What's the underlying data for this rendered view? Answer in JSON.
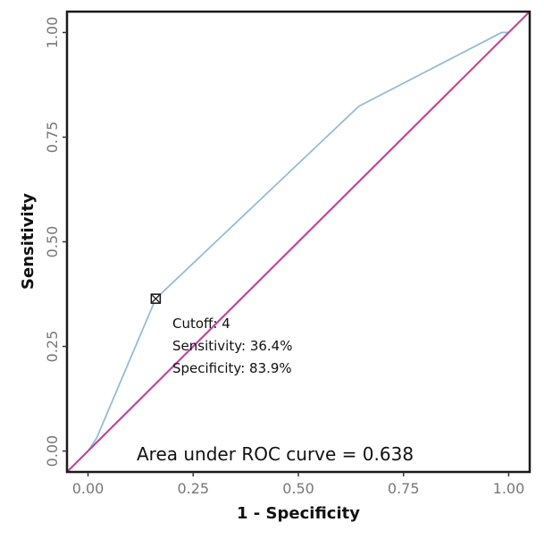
{
  "chart_data": {
    "type": "line",
    "title": "",
    "xlabel": "1 - Specificity",
    "ylabel": "Sensitivity",
    "xlim": [
      -0.05,
      1.05
    ],
    "ylim": [
      -0.05,
      1.05
    ],
    "x_ticks": [
      0,
      0.25,
      0.5,
      0.75,
      1
    ],
    "x_tick_labels": [
      "0.00",
      "0.25",
      "0.50",
      "0.75",
      "1.00"
    ],
    "y_ticks": [
      0,
      0.25,
      0.5,
      0.75,
      1
    ],
    "y_tick_labels": [
      "0.00",
      "0.25",
      "0.50",
      "0.75",
      "1.00"
    ],
    "grid": false,
    "series": [
      {
        "name": "ROC curve",
        "color": "#93bcd8",
        "x": [
          0,
          0.02,
          0.161,
          0.644,
          0.983,
          1.0
        ],
        "y": [
          0,
          0.03,
          0.364,
          0.824,
          1.0,
          1.0
        ]
      },
      {
        "name": "Reference line",
        "color": "#c2479b",
        "x": [
          -0.05,
          1.05
        ],
        "y": [
          -0.05,
          1.05
        ]
      }
    ],
    "marker": {
      "x": 0.161,
      "y": 0.364
    },
    "annotations": {
      "cutoff": "Cutoff: 4",
      "sensitivity": "Sensitivity: 36.4%",
      "specificity": "Specificity: 83.9%",
      "auc": "Area under ROC curve =  0.638"
    }
  }
}
